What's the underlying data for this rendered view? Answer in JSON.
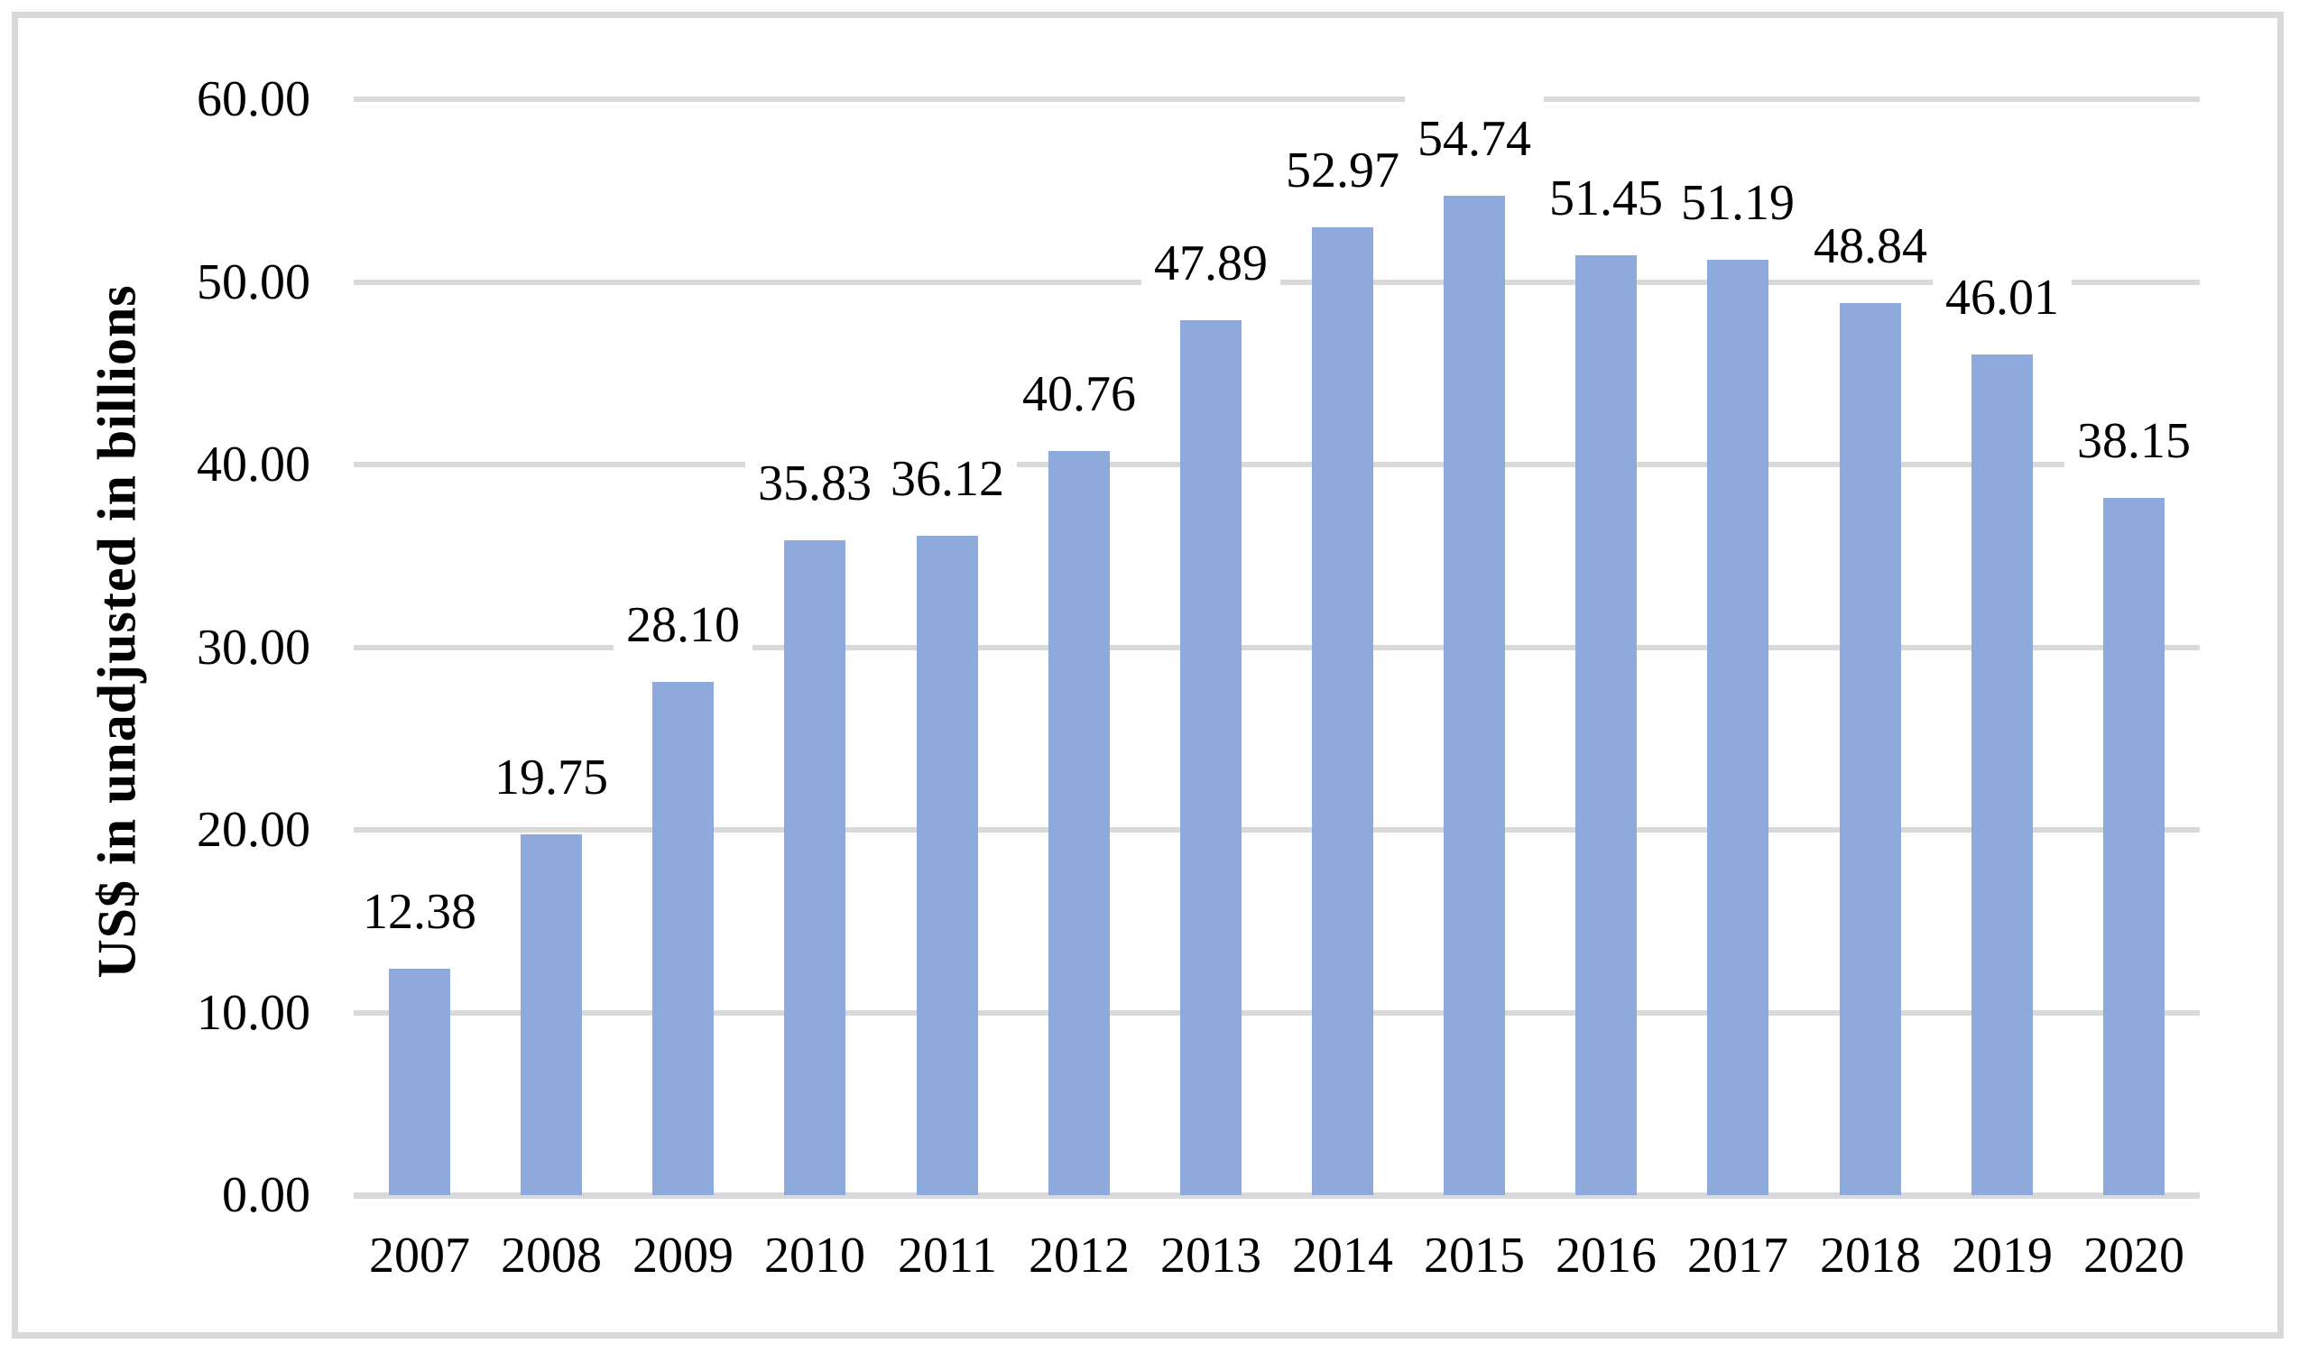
{
  "figure": {
    "background": "#ffffff",
    "border_color": "#d9d9d9"
  },
  "chart_data": {
    "type": "bar",
    "title": "",
    "xlabel": "",
    "ylabel": "US$ in unadjusted in billions",
    "categories": [
      "2007",
      "2008",
      "2009",
      "2010",
      "2011",
      "2012",
      "2013",
      "2014",
      "2015",
      "2016",
      "2017",
      "2018",
      "2019",
      "2020"
    ],
    "values": [
      12.38,
      19.75,
      28.1,
      35.83,
      36.12,
      40.76,
      47.89,
      52.97,
      54.74,
      51.45,
      51.19,
      48.84,
      46.01,
      38.15
    ],
    "value_labels": [
      "12.38",
      "19.75",
      "28.10",
      "35.83",
      "36.12",
      "40.76",
      "47.89",
      "52.97",
      "54.74",
      "51.45",
      "51.19",
      "48.84",
      "46.01",
      "38.15"
    ],
    "ylim": [
      0,
      60
    ],
    "y_ticks": [
      0,
      10,
      20,
      30,
      40,
      50,
      60
    ],
    "y_tick_labels": [
      "0.00",
      "10.00",
      "20.00",
      "30.00",
      "40.00",
      "50.00",
      "60.00"
    ],
    "grid": "horizontal",
    "legend_position": "none",
    "bar_color": "#8EA9DB",
    "gridline_color": "#D9D9D9",
    "text_color": "#000000"
  }
}
